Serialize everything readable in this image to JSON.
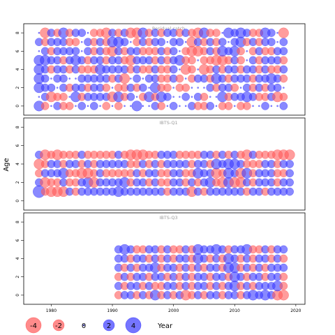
{
  "chart_data": {
    "type": "scatter",
    "subtype": "bubble-residuals",
    "ylabel": "Age",
    "xlabel": "Year",
    "xlim": [
      1975.5,
      2021.5
    ],
    "x_ticks": [
      1980,
      1990,
      2000,
      2010,
      2020
    ],
    "x_tick_labels": [
      "1980",
      "1990",
      "2000",
      "2010",
      "2020"
    ],
    "y_ticks": [
      0,
      2,
      4,
      6,
      8
    ],
    "y_tick_labels": [
      "0",
      "2",
      "4",
      "6",
      "8"
    ],
    "positive_color": "#3b3bff",
    "negative_color": "#ff5a5a",
    "grid": false,
    "legend_placement": "bottom-left",
    "legend": [
      {
        "label": "-4",
        "value": -4
      },
      {
        "label": "-2",
        "value": -2
      },
      {
        "label": "0",
        "value": 0
      },
      {
        "label": "2",
        "value": 2
      },
      {
        "label": "4",
        "value": 4
      }
    ],
    "panels": [
      {
        "title": "Residual catch",
        "ylim": [
          -1,
          9
        ],
        "years": [
          1978,
          2018
        ],
        "ages": [
          0,
          1,
          2,
          3,
          4,
          5,
          6,
          7,
          8
        ],
        "residuals": [
          [
            2,
            -1,
            0,
            1,
            -1,
            -1,
            0,
            1,
            0,
            1,
            0,
            -1,
            0,
            -1,
            0,
            0,
            2,
            0,
            0,
            1,
            -1,
            0,
            1,
            0,
            0,
            1,
            -1,
            -1,
            1,
            0,
            -1,
            -1,
            0,
            -1,
            -1,
            0,
            0,
            1,
            0,
            0,
            1
          ],
          [
            0,
            1,
            -2,
            -1,
            -1,
            0,
            2,
            -1,
            1,
            1,
            1,
            1,
            -2,
            2,
            -1,
            1,
            0,
            -1,
            2,
            -1,
            2,
            1,
            0,
            0,
            1,
            0,
            1,
            -1,
            0,
            0,
            2,
            -1,
            1,
            1,
            2,
            1,
            -1,
            -1,
            1,
            -2,
            -1
          ],
          [
            2,
            1,
            1,
            0,
            1,
            -1,
            1,
            1,
            -1,
            1,
            1,
            -1,
            0,
            -1,
            -1,
            1,
            -1,
            1,
            0,
            2,
            -1,
            -1,
            0,
            -1,
            -1,
            0,
            0,
            0,
            1,
            -1,
            1,
            1,
            -1,
            0,
            1,
            -1,
            1,
            -1,
            1,
            1,
            0
          ],
          [
            2,
            1,
            0,
            1,
            1,
            0,
            0,
            1,
            1,
            1,
            1,
            1,
            -1,
            1,
            -2,
            0,
            1,
            0,
            1,
            1,
            -1,
            -1,
            1,
            -1,
            0,
            -1,
            1,
            1,
            -1,
            2,
            1,
            -1,
            1,
            1,
            1,
            -1,
            1,
            1,
            2,
            1,
            -1
          ],
          [
            2,
            1,
            -1,
            1,
            1,
            -1,
            1,
            -1,
            -1,
            -1,
            2,
            1,
            1,
            1,
            1,
            -1,
            1,
            -1,
            -1,
            1,
            -1,
            -1,
            1,
            0,
            -2,
            -1,
            0,
            -2,
            -1,
            1,
            -1,
            1,
            1,
            -1,
            1,
            1,
            -1,
            1,
            -1,
            -1,
            1
          ],
          [
            2,
            2,
            1,
            1,
            -1,
            1,
            2,
            1,
            -1,
            1,
            1,
            -1,
            1,
            1,
            -1,
            -2,
            1,
            1,
            1,
            -1,
            1,
            -1,
            1,
            2,
            -1,
            -1,
            0,
            -1,
            -1,
            -2,
            -2,
            -1,
            1,
            -1,
            0,
            1,
            -1,
            1,
            1,
            1,
            -1
          ],
          [
            0,
            1,
            -1,
            1,
            1,
            1,
            1,
            0,
            1,
            -1,
            1,
            -1,
            -2,
            1,
            -1,
            1,
            1,
            -1,
            -1,
            -1,
            1,
            -1,
            1,
            0,
            -1,
            -2,
            -2,
            -1,
            1,
            -1,
            2,
            1,
            2,
            -1,
            0,
            -1,
            1,
            -1,
            -1,
            1,
            1
          ],
          [
            1,
            -1,
            1,
            1,
            1,
            -1,
            -1,
            0,
            1,
            -1,
            1,
            -1,
            2,
            2,
            1,
            0,
            -1,
            1,
            -1,
            1,
            1,
            0,
            1,
            1,
            0,
            -2,
            1,
            -1,
            1,
            -1,
            1,
            0,
            1,
            2,
            -1,
            1,
            -1,
            1,
            1,
            0,
            1
          ],
          [
            0,
            -2,
            1,
            -1,
            2,
            -1,
            1,
            1,
            0,
            -1,
            -1,
            -2,
            1,
            -1,
            1,
            -2,
            -2,
            2,
            -1,
            1,
            -1,
            1,
            1,
            -1,
            1,
            -1,
            -2,
            2,
            -1,
            -1,
            0,
            2,
            1,
            2,
            1,
            -1,
            -1,
            2,
            1,
            0,
            -2
          ]
        ]
      },
      {
        "title": "IBTS-Q1",
        "ylim": [
          -1,
          9
        ],
        "years": [
          1978,
          2019
        ],
        "ages": [
          1,
          2,
          3,
          4,
          5
        ],
        "residuals": [
          [
            3,
            -1,
            -2,
            -2,
            -2,
            1,
            -1,
            1,
            1,
            1,
            1,
            1,
            1,
            2,
            1,
            1,
            1,
            1,
            1,
            1,
            1,
            -1,
            1,
            1,
            1,
            -2,
            1,
            -1,
            1,
            1,
            1,
            1,
            1,
            1,
            -1,
            1,
            1,
            -1,
            1,
            1,
            1,
            1
          ],
          [
            1,
            -2,
            -1,
            -1,
            1,
            -1,
            -1,
            1,
            2,
            -2,
            1,
            1,
            1,
            1,
            2,
            -1,
            1,
            1,
            -1,
            1,
            -1,
            -1,
            1,
            1,
            -1,
            1,
            -1,
            1,
            2,
            -1,
            -2,
            2,
            -2,
            -2,
            1,
            -1,
            1,
            1,
            1,
            -1,
            1,
            1
          ],
          [
            -1,
            1,
            1,
            1,
            2,
            -1,
            -1,
            -2,
            -2,
            -1,
            1,
            -1,
            -1,
            -1,
            -1,
            -1,
            1,
            -1,
            1,
            1,
            -1,
            -1,
            1,
            1,
            -1,
            -1,
            2,
            1,
            1,
            -2,
            -1,
            2,
            1,
            -2,
            2,
            -1,
            1,
            1,
            1,
            -1,
            -1,
            1
          ],
          [
            -2,
            -1,
            1,
            1,
            -1,
            1,
            1,
            -1,
            1,
            -1,
            1,
            1,
            1,
            1,
            1,
            -1,
            -1,
            1,
            -1,
            1,
            -1,
            1,
            1,
            1,
            1,
            -1,
            1,
            1,
            -1,
            2,
            1,
            2,
            2,
            1,
            -1,
            -1,
            -1,
            1,
            1,
            -1,
            1,
            1
          ],
          [
            1,
            -2,
            -1,
            -2,
            -1,
            -1,
            -1,
            1,
            -1,
            -1,
            -1,
            -1,
            -1,
            1,
            -1,
            -2,
            -2,
            -2,
            -1,
            -1,
            1,
            1,
            1,
            -1,
            -1,
            -1,
            -1,
            1,
            1,
            -1,
            1,
            -1,
            1,
            -1,
            -2,
            1,
            -1,
            -1,
            -1,
            -2,
            -2,
            -2
          ]
        ]
      },
      {
        "title": "IBTS-Q3",
        "ylim": [
          -1,
          9
        ],
        "years": [
          1991,
          2018
        ],
        "ages": [
          0,
          1,
          2,
          3,
          4,
          5
        ],
        "residuals": [
          [
            -1,
            1,
            1,
            -1,
            1,
            -1,
            2,
            -1,
            1,
            -1,
            1,
            -2,
            -1,
            1,
            -1,
            1,
            1,
            -1,
            1,
            1,
            -1,
            1,
            2,
            1,
            2,
            1,
            -2,
            -2
          ],
          [
            1,
            -1,
            1,
            1,
            -1,
            1,
            -1,
            -1,
            1,
            1,
            -1,
            1,
            -1,
            1,
            1,
            -1,
            1,
            -1,
            1,
            2,
            -1,
            1,
            -1,
            1,
            1,
            1,
            2,
            -1
          ],
          [
            -1,
            1,
            -1,
            1,
            1,
            -1,
            1,
            1,
            -1,
            1,
            -1,
            1,
            -1,
            1,
            1,
            -1,
            1,
            1,
            -1,
            2,
            1,
            -1,
            1,
            1,
            -1,
            1,
            1,
            -1
          ],
          [
            1,
            -1,
            1,
            -1,
            1,
            1,
            2,
            -1,
            1,
            1,
            -1,
            1,
            -1,
            1,
            -1,
            1,
            1,
            -1,
            2,
            2,
            -1,
            1,
            -1,
            1,
            -1,
            1,
            1,
            1
          ],
          [
            1,
            1,
            -1,
            1,
            1,
            -1,
            1,
            -1,
            1,
            -1,
            1,
            1,
            -1,
            2,
            1,
            -1,
            1,
            -1,
            2,
            1,
            -1,
            1,
            -1,
            1,
            1,
            -1,
            1,
            -1
          ],
          [
            1,
            2,
            1,
            -1,
            -1,
            1,
            1,
            -1,
            1,
            -1,
            -1,
            1,
            -1,
            2,
            1,
            1,
            2,
            1,
            -1,
            1,
            1,
            2,
            -1,
            -1,
            1,
            -1,
            1,
            1
          ]
        ]
      }
    ]
  }
}
